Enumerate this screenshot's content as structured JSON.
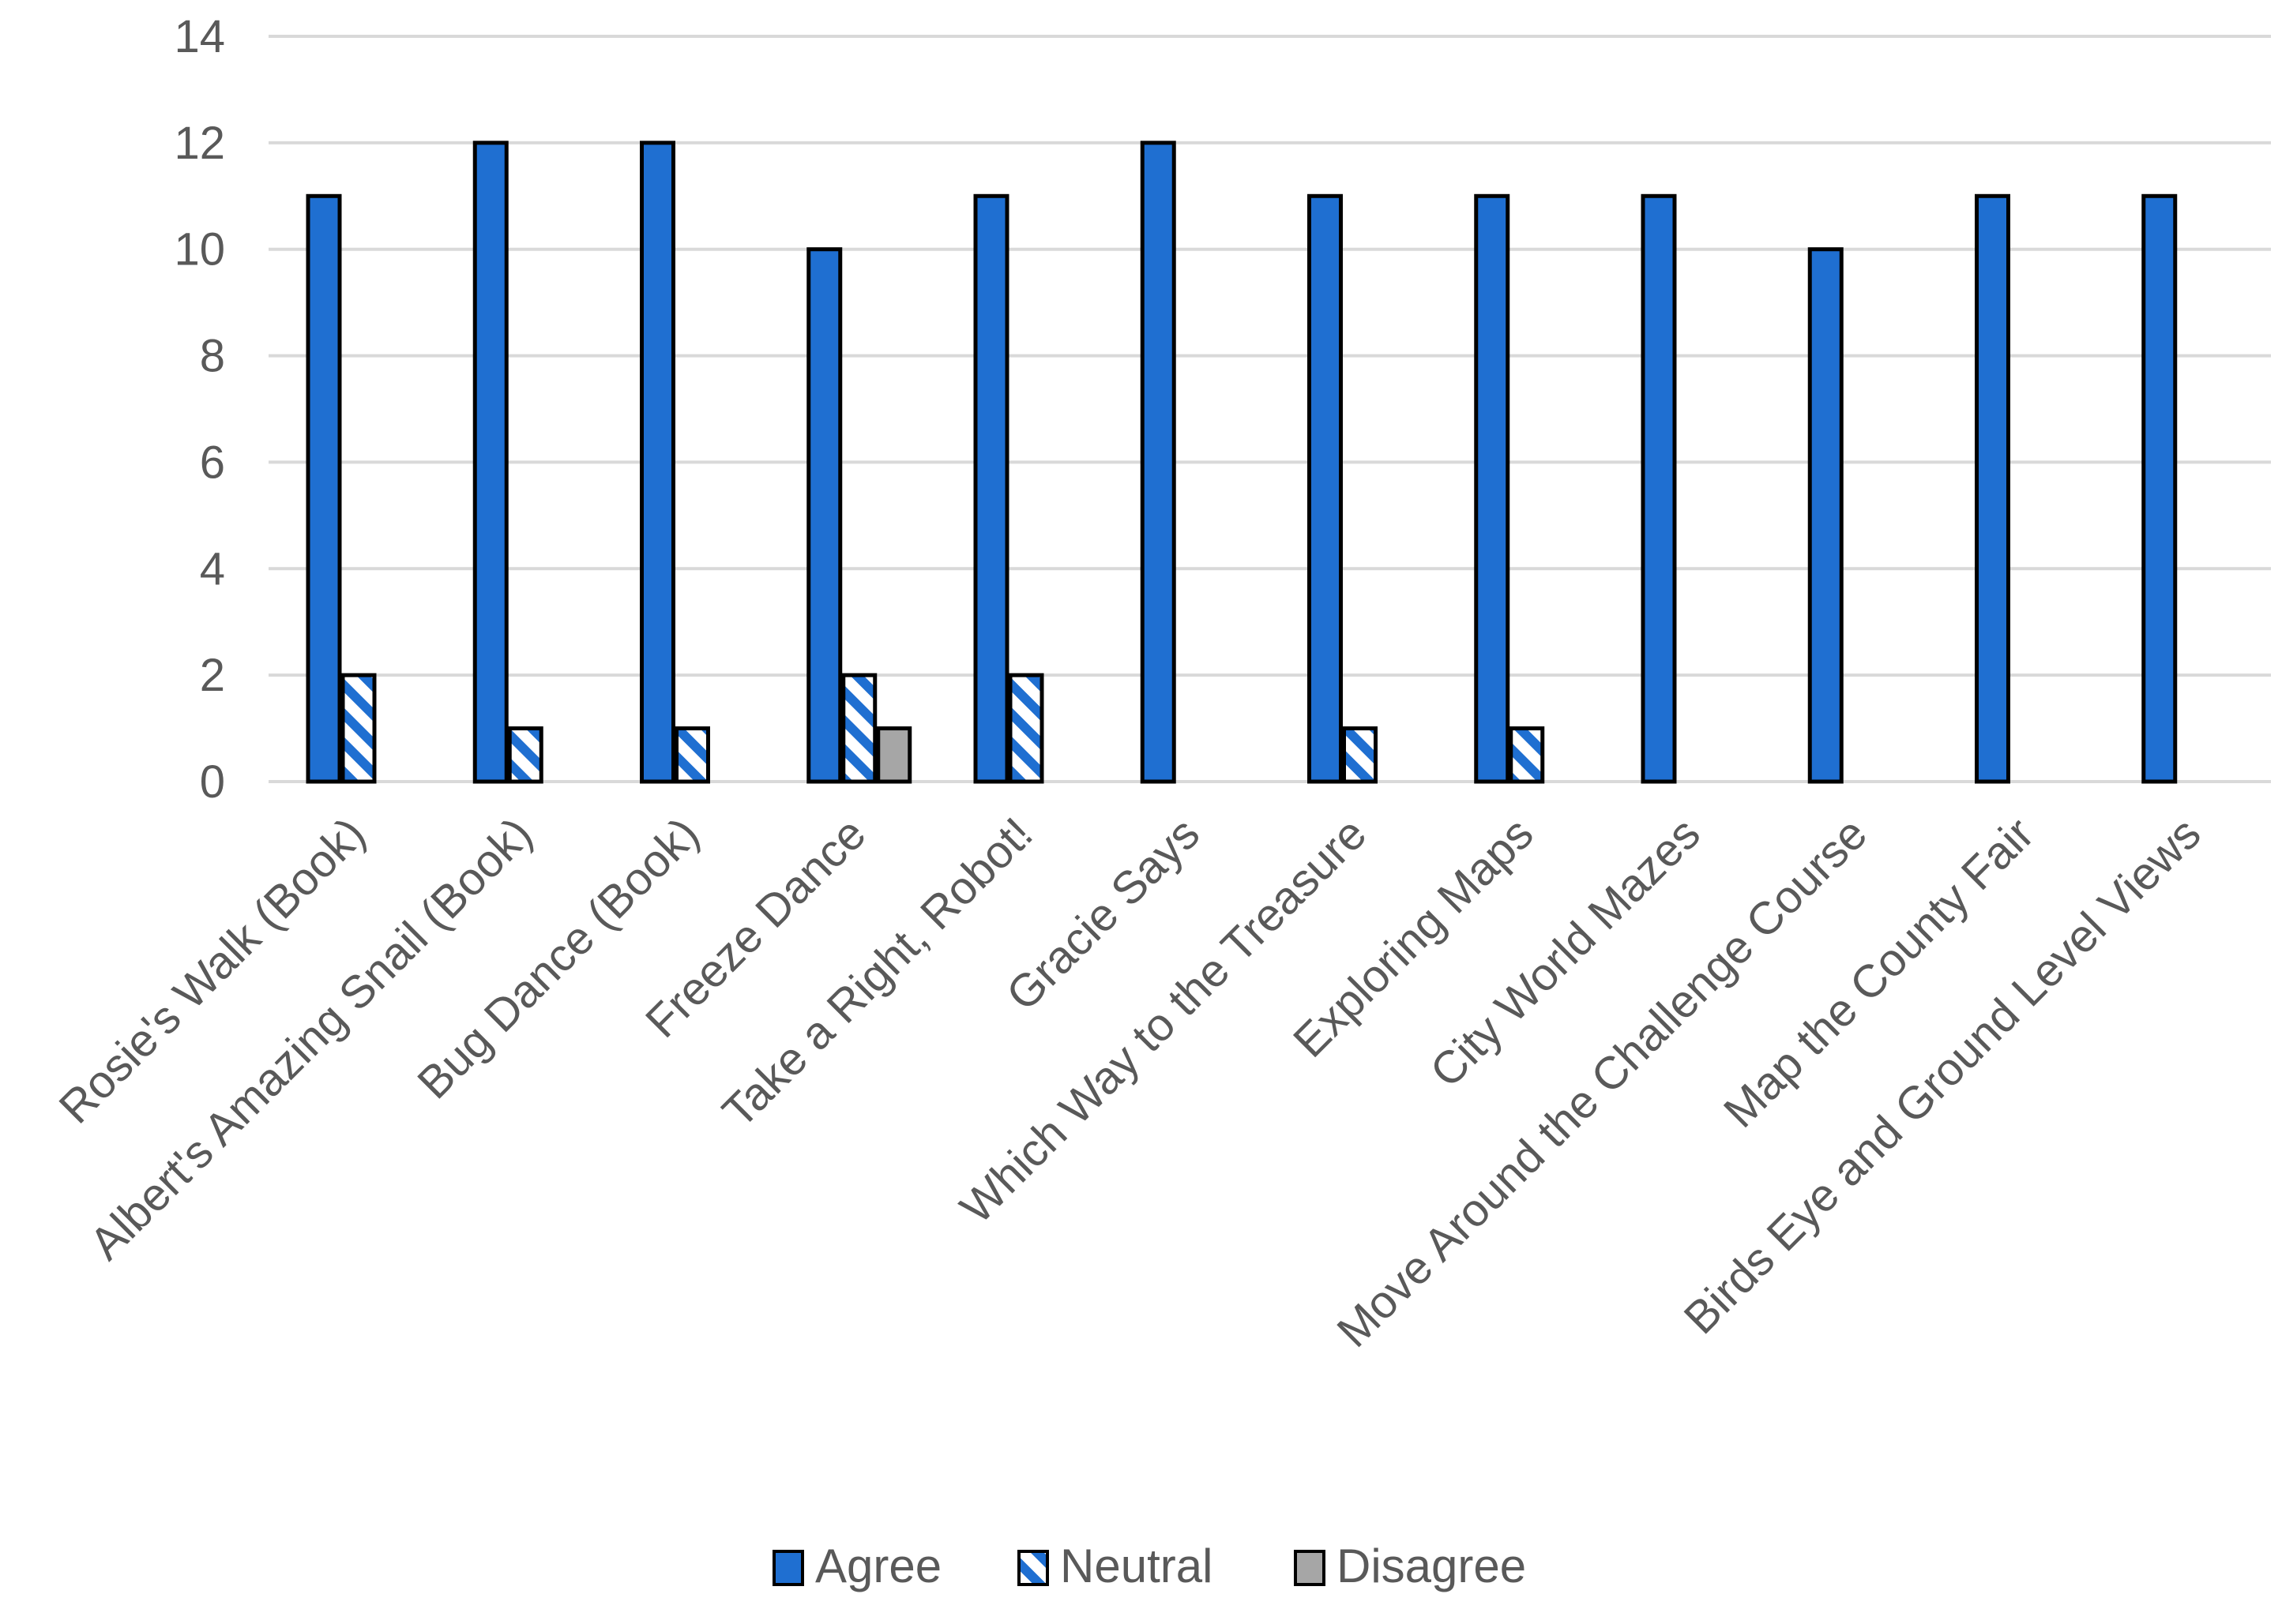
{
  "chart_data": {
    "type": "bar",
    "title": "",
    "xlabel": "",
    "ylabel": "",
    "ylim": [
      0,
      14
    ],
    "yticks": [
      "0",
      "2",
      "4",
      "6",
      "8",
      "10",
      "12",
      "14"
    ],
    "grid": "horizontal",
    "legend_position": "bottom",
    "categories": [
      "Rosie's Walk (Book)",
      "Albert's Amazing Snail (Book)",
      "Bug Dance (Book)",
      "Freeze Dance",
      "Take a Right, Robot!",
      "Gracie Says",
      "Which Way to the Treasure",
      "Exploring Maps",
      "City World Mazes",
      "Move Around the Challenge Course",
      "Map the County Fair",
      "Birds Eye and Ground Level Views"
    ],
    "series": [
      {
        "name": "Agree",
        "values": [
          11,
          12,
          12,
          10,
          11,
          12,
          11,
          11,
          11,
          10,
          11,
          11
        ],
        "color": "#1F6FD1",
        "pattern": "solid"
      },
      {
        "name": "Neutral",
        "values": [
          2,
          1,
          1,
          2,
          2,
          0,
          1,
          1,
          0,
          0,
          0,
          0
        ],
        "color": "#1F6FD1",
        "pattern": "diagonal-stripe"
      },
      {
        "name": "Disagree",
        "values": [
          0,
          0,
          0,
          1,
          0,
          0,
          0,
          0,
          0,
          0,
          0,
          0
        ],
        "color": "#A6A6A6",
        "pattern": "solid"
      }
    ]
  },
  "colors": {
    "gridline": "#D9D9D9",
    "axis_text": "#595959",
    "bar_outline": "#000000"
  }
}
